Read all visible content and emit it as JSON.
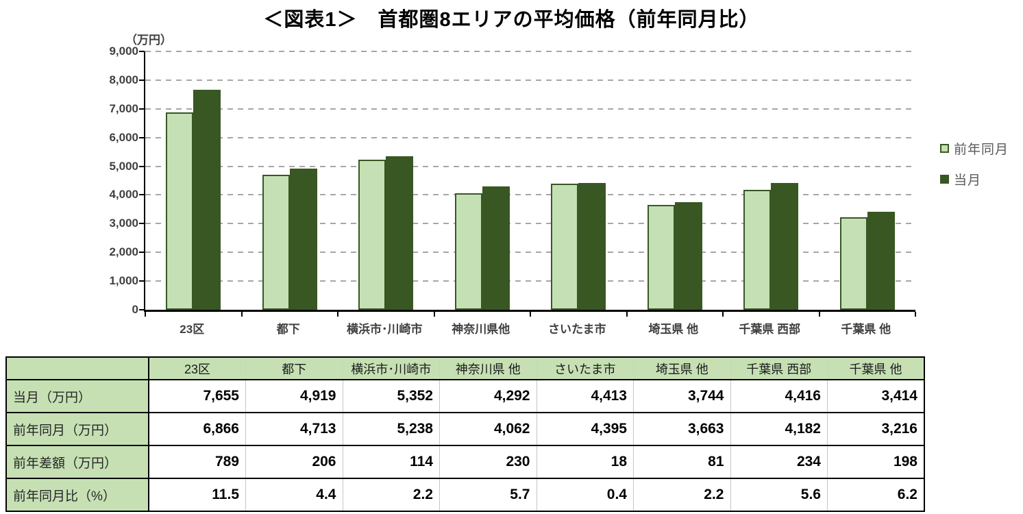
{
  "title": "＜図表1＞　首都圏8エリアの平均価格（前年同月比）",
  "chart_data": {
    "type": "bar",
    "title": "＜図表1＞　首都圏8エリアの平均価格（前年同月比）",
    "unit_label": "（万円）",
    "xlabel": "",
    "ylabel": "万円",
    "categories": [
      "23区",
      "都下",
      "横浜市･川崎市",
      "神奈川県他",
      "さいたま市",
      "埼玉県 他",
      "千葉県 西部",
      "千葉県 他"
    ],
    "series": [
      {
        "name": "前年同月",
        "color": "#c5e0b4",
        "border": "#385723",
        "values": [
          6866,
          4713,
          5238,
          4062,
          4395,
          3663,
          4182,
          3216
        ]
      },
      {
        "name": "当月",
        "color": "#385723",
        "border": "#385723",
        "values": [
          7655,
          4919,
          5352,
          4292,
          4413,
          3744,
          4416,
          3414
        ]
      }
    ],
    "ylim": [
      0,
      9000
    ],
    "ytick_step": 1000,
    "ytick_labels": [
      "0",
      "1,000",
      "2,000",
      "3,000",
      "4,000",
      "5,000",
      "6,000",
      "7,000",
      "8,000",
      "9,000"
    ],
    "grid": "dashed horizontal",
    "legend_position": "right"
  },
  "table": {
    "corner": "",
    "columns": [
      "23区",
      "都下",
      "横浜市･川崎市",
      "神奈川県 他",
      "さいたま市",
      "埼玉県 他",
      "千葉県 西部",
      "千葉県 他"
    ],
    "rows": [
      {
        "label": "当月（万円）",
        "values": [
          "7,655",
          "4,919",
          "5,352",
          "4,292",
          "4,413",
          "3,744",
          "4,416",
          "3,414"
        ]
      },
      {
        "label": "前年同月（万円）",
        "values": [
          "6,866",
          "4,713",
          "5,238",
          "4,062",
          "4,395",
          "3,663",
          "4,182",
          "3,216"
        ]
      },
      {
        "label": "前年差額（万円）",
        "values": [
          "789",
          "206",
          "114",
          "230",
          "18",
          "81",
          "234",
          "198"
        ]
      },
      {
        "label": "前年同月比（%）",
        "values": [
          "11.5",
          "4.4",
          "2.2",
          "5.7",
          "0.4",
          "2.2",
          "5.6",
          "6.2"
        ]
      }
    ]
  },
  "colors": {
    "axis_text": "#404040",
    "gridline": "#a6a6a6",
    "legend_text": "#595959",
    "table_header_bg": "#c6e0b4",
    "bar_light": "#c5e0b4",
    "bar_dark": "#385723",
    "bar_border": "#385723"
  }
}
